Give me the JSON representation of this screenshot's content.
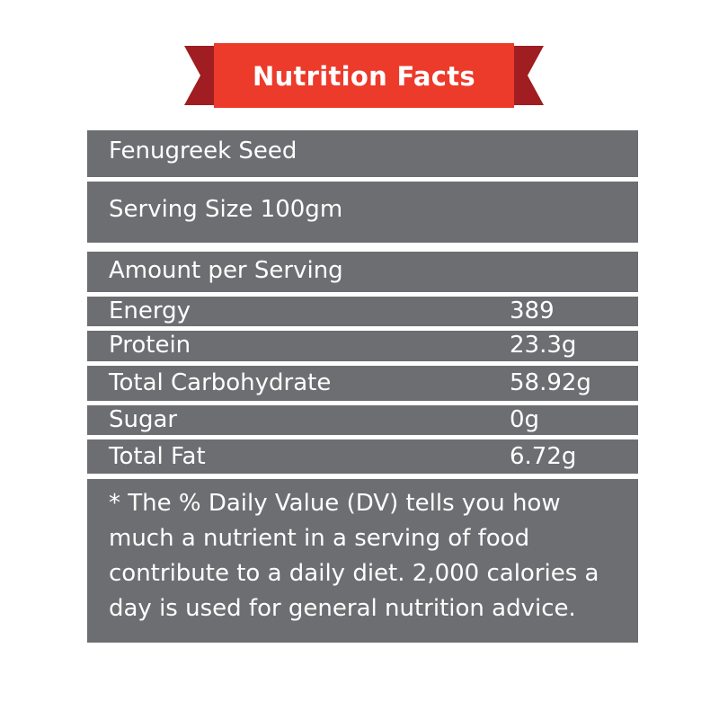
{
  "header": {
    "title": "Nutrition Facts"
  },
  "product": {
    "name": "Fenugreek Seed"
  },
  "serving": {
    "size": "Serving Size 100gm"
  },
  "amount_header": "Amount per Serving",
  "nutrients": [
    {
      "label": "Energy",
      "value": "389"
    },
    {
      "label": "Protein",
      "value": "23.3g"
    },
    {
      "label": "Total Carbohydrate",
      "value": "58.92g"
    },
    {
      "label": "Sugar",
      "value": "0g"
    },
    {
      "label": "Total Fat",
      "value": "6.72g"
    }
  ],
  "footnote": "* The % Daily Value (DV) tells you how much a nutrient in a serving of food contribute to a daily diet. 2,000 calories a day is used for general nutrition advice.",
  "colors": {
    "banner_red": "#ec3a2b",
    "ribbon_dark": "#a01d21",
    "panel_gray": "#6d6e71"
  }
}
